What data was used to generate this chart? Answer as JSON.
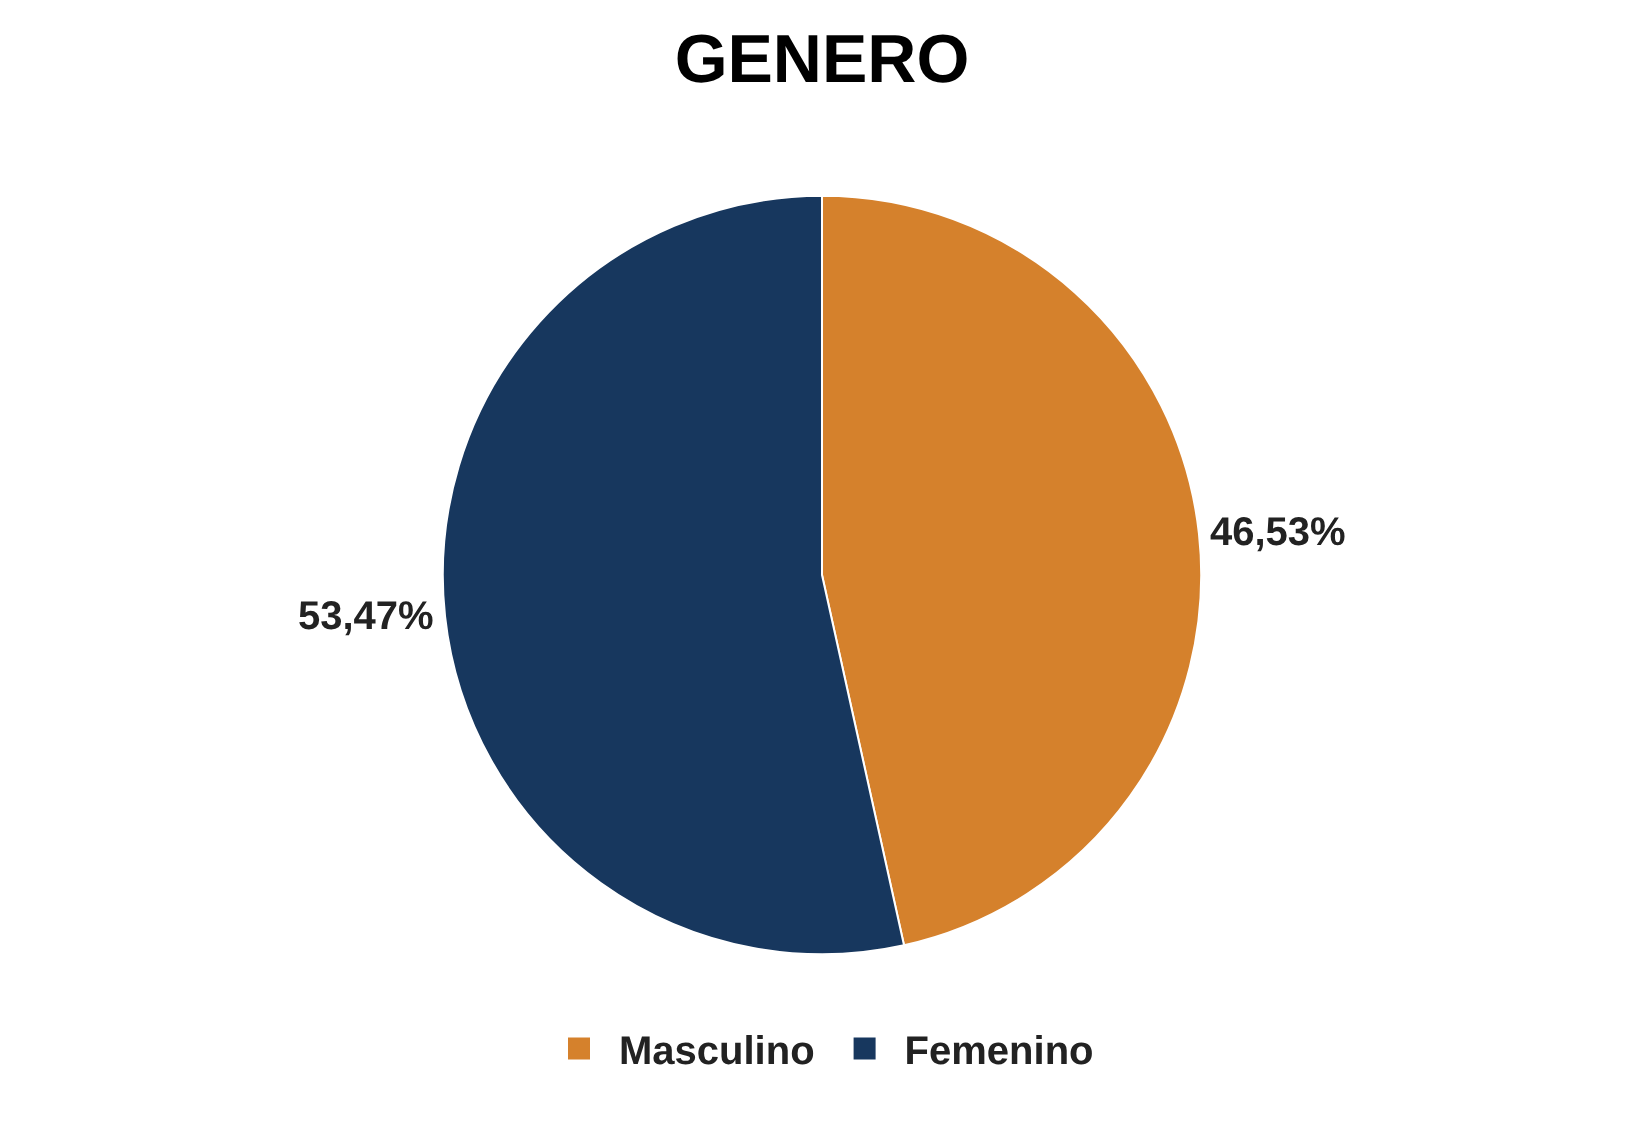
{
  "chart_data": {
    "type": "pie",
    "title": "GENERO",
    "categories": [
      "Masculino",
      "Femenino"
    ],
    "values": [
      46.53,
      53.47
    ],
    "value_labels": [
      "46,53%",
      "53,47%"
    ],
    "colors": [
      "#d5812c",
      "#17375e"
    ],
    "legend": "bottom"
  }
}
